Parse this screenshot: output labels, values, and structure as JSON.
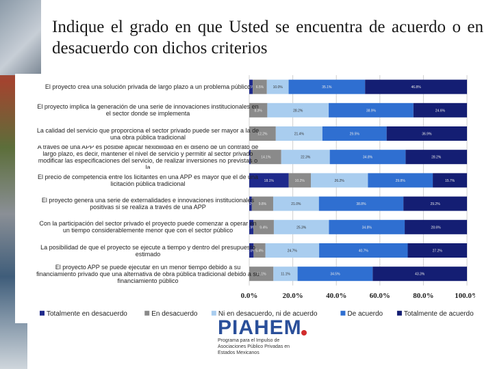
{
  "slide": {
    "title": "Indique el grado en que Usted se encuentra de acuerdo o en desacuerdo con dichos criterios"
  },
  "logo": {
    "name": "PIAHEM",
    "subtitle": "Programa para el Impulso de Asociaciones Público Privadas en Estados Mexicanos"
  },
  "colors": {
    "Totalmente en desacuerdo": "#1f2a8c",
    "En desacuerdo": "#8a8a8a",
    "Ni en desacuerdo, ni de acuerdo": "#a9cdef",
    "De acuerdo": "#2f6fd1",
    "Totalmente de acuerdo": "#141e73"
  },
  "chart_data": {
    "type": "bar",
    "orientation": "horizontal",
    "stacked": true,
    "percent_stacked": true,
    "title": "",
    "xlabel": "",
    "ylabel": "",
    "xlim": [
      0,
      100
    ],
    "xticks": [
      "0.0%",
      "20.0%",
      "40.0%",
      "60.0%",
      "80.0%",
      "100.0%"
    ],
    "grid": true,
    "legend_position": "bottom",
    "categories": [
      "El proyecto crea una solución privada de largo plazo a un problema público",
      "El proyecto implica la generación de una serie de innovaciones institucionales en el sector donde se implementa",
      "La calidad del servicio que proporciona el sector privado puede ser mayor a la de una obra pública tradicional",
      "A través de una APP es posible aplicar flexibilidad en el diseño de un contrato de largo plazo, es decir, mantener el nivel de servicio y permitir al sector privado modificar las especificaciones del servicio, de realizar inversiones no previstas o la",
      "El precio de competencia entre los licitantes en una APP es mayor que el de una licitación pública tradicional",
      "El proyecto genera una serie de externalidades e innovaciones institucionales positivas si se realiza a través de una APP",
      "Con la participación del sector privado el proyecto puede comenzar a operar en un tiempo considerablemente menor que con el sector público",
      "La posibilidad de que el proyecto se ejecute a tiempo y dentro del presupuesto estimado",
      "El proyecto APP se puede ejecutar en un menor tiempo debido a su financiamiento privado que una alternativa de obra pública tradicional debido a su financiamiento público"
    ],
    "series": [
      {
        "name": "Totalmente en desacuerdo",
        "values": [
          1.6,
          0.0,
          0.0,
          0.6,
          18.1,
          1.2,
          1.9,
          2.0,
          0.0
        ]
      },
      {
        "name": "En desacuerdo",
        "values": [
          6.5,
          8.3,
          12.2,
          14.1,
          10.2,
          9.8,
          9.4,
          5.4,
          11.1
        ]
      },
      {
        "name": "Ni en desacuerdo, ni de acuerdo",
        "values": [
          10.0,
          28.2,
          21.4,
          22.3,
          26.2,
          21.0,
          25.3,
          24.7,
          11.1
        ]
      },
      {
        "name": "De acuerdo",
        "values": [
          35.1,
          38.9,
          29.5,
          34.8,
          29.8,
          38.8,
          34.8,
          40.7,
          34.5
        ]
      },
      {
        "name": "Totalmente de acuerdo",
        "values": [
          46.8,
          24.6,
          36.9,
          28.2,
          15.7,
          29.2,
          28.6,
          27.2,
          43.3
        ]
      }
    ]
  }
}
